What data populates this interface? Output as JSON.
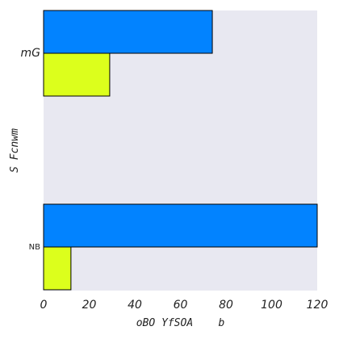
{
  "chart_data": {
    "type": "bar",
    "orientation": "horizontal",
    "categories": [
      "mG",
      "NB"
    ],
    "series": [
      {
        "values": [
          74,
          120
        ],
        "color": "#0283ff"
      },
      {
        "values": [
          29,
          12
        ],
        "color": "#dcff1c"
      }
    ],
    "xlabel": "oBO YfSOA    b",
    "ylabel": "S Fcnwm",
    "xlim": [
      0,
      120
    ],
    "xticks": [
      "0",
      "20",
      "40",
      "60",
      "80",
      "100",
      "120"
    ],
    "grid": false,
    "background": "#e8e8f1",
    "bar_edge": "#000000"
  }
}
